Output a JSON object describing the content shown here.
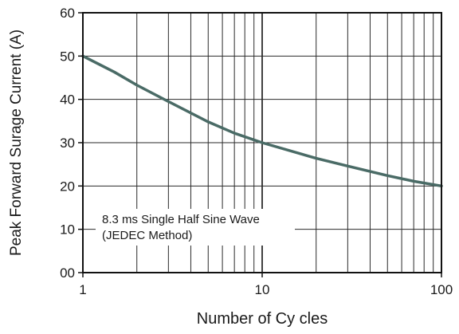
{
  "chart_data": {
    "type": "line",
    "title": "",
    "xlabel": "Number of Cy cles",
    "ylabel": "Peak Forward Surage Current (A)",
    "x_scale": "log",
    "xlim": [
      1,
      100
    ],
    "ylim": [
      0,
      60
    ],
    "x_ticks": [
      1,
      10,
      100
    ],
    "x_tick_labels": [
      "1",
      "10",
      "100"
    ],
    "y_ticks": [
      0,
      10,
      20,
      30,
      40,
      50,
      60
    ],
    "y_tick_labels": [
      "00",
      "10",
      "20",
      "30",
      "40",
      "50",
      "60"
    ],
    "grid": true,
    "legend": null,
    "annotation": {
      "line1": "8.3 ms Single Half Sine Wave",
      "line2": "(JEDEC Method)"
    },
    "series": [
      {
        "color": "#4a6b66",
        "points": [
          [
            1,
            50.0
          ],
          [
            1.5,
            46.3
          ],
          [
            2,
            43.3
          ],
          [
            3,
            39.5
          ],
          [
            5,
            34.8
          ],
          [
            7,
            32.2
          ],
          [
            10,
            30.0
          ],
          [
            20,
            26.4
          ],
          [
            30,
            24.6
          ],
          [
            50,
            22.4
          ],
          [
            70,
            21.1
          ],
          [
            100,
            20.0
          ]
        ]
      }
    ]
  }
}
